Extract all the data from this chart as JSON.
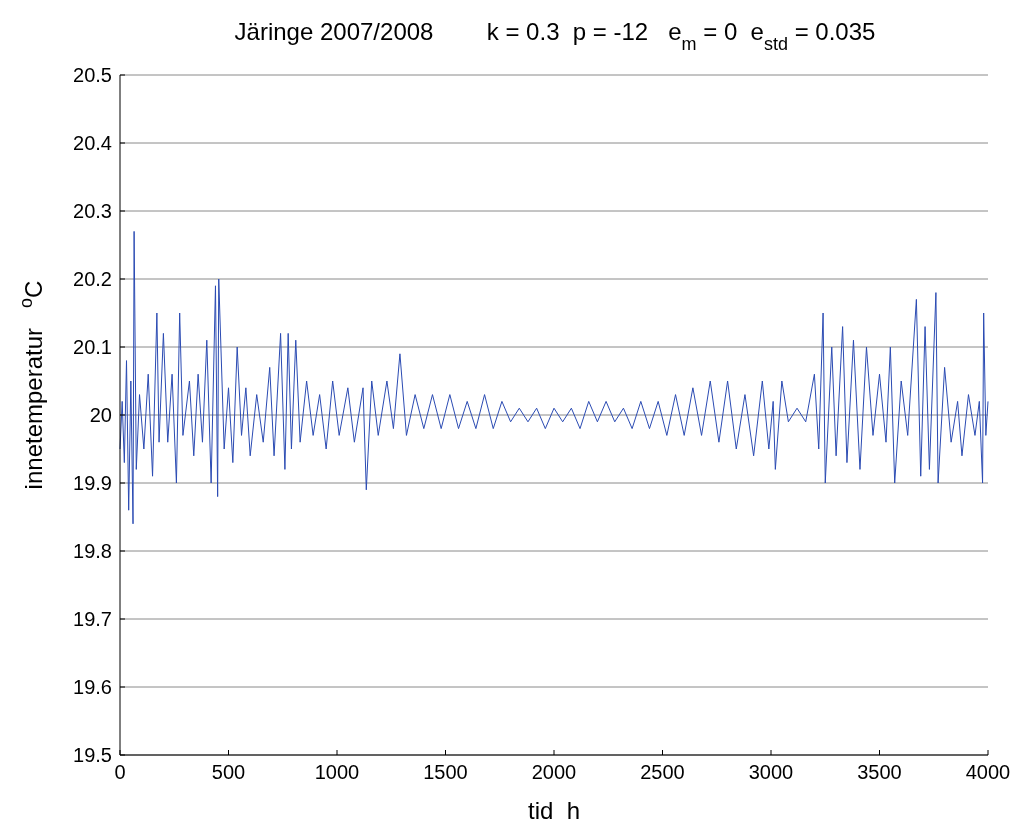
{
  "chart_data": {
    "type": "line",
    "title": "Järinge 2007/2008        k = 0.3  p = -12   e$_{m}$ = 0  e$_{std}$ = 0.035",
    "xlabel": "tid  h",
    "ylabel": "innetemperatur   $^{o}$C",
    "xlim": [
      0,
      4000
    ],
    "xticks": [
      0,
      500,
      1000,
      1500,
      2000,
      2500,
      3000,
      3500,
      4000
    ],
    "ylim": [
      19.5,
      20.5
    ],
    "yticks": [
      19.5,
      19.6,
      19.7,
      19.8,
      19.9,
      20,
      20.1,
      20.2,
      20.3,
      20.4,
      20.5
    ],
    "grid": "y",
    "marker": "none",
    "line_style": "solid",
    "series": [
      {
        "color": "#2b4bb3",
        "x": [
          0,
          10,
          20,
          30,
          40,
          50,
          60,
          65,
          75,
          90,
          110,
          130,
          150,
          170,
          180,
          200,
          220,
          240,
          260,
          275,
          290,
          320,
          340,
          360,
          380,
          400,
          420,
          440,
          450,
          455,
          480,
          500,
          520,
          540,
          560,
          580,
          600,
          630,
          660,
          690,
          710,
          740,
          760,
          775,
          790,
          810,
          830,
          860,
          890,
          920,
          950,
          980,
          1010,
          1050,
          1080,
          1120,
          1135,
          1160,
          1190,
          1230,
          1260,
          1290,
          1320,
          1360,
          1400,
          1440,
          1480,
          1520,
          1560,
          1600,
          1640,
          1680,
          1720,
          1760,
          1800,
          1840,
          1880,
          1920,
          1960,
          2000,
          2040,
          2080,
          2120,
          2160,
          2200,
          2240,
          2280,
          2320,
          2360,
          2400,
          2440,
          2480,
          2520,
          2560,
          2600,
          2640,
          2680,
          2720,
          2760,
          2800,
          2840,
          2880,
          2920,
          2960,
          2990,
          3010,
          3020,
          3050,
          3080,
          3120,
          3160,
          3200,
          3220,
          3240,
          3250,
          3280,
          3300,
          3330,
          3350,
          3380,
          3410,
          3440,
          3470,
          3500,
          3530,
          3550,
          3570,
          3600,
          3630,
          3670,
          3690,
          3710,
          3730,
          3760,
          3770,
          3800,
          3830,
          3860,
          3880,
          3910,
          3940,
          3960,
          3975,
          3980,
          3990,
          4000
        ],
        "values": [
          19.95,
          20.02,
          19.93,
          20.08,
          19.86,
          20.05,
          19.84,
          20.27,
          19.92,
          20.03,
          19.95,
          20.06,
          19.91,
          20.15,
          19.96,
          20.12,
          19.96,
          20.06,
          19.9,
          20.15,
          19.97,
          20.05,
          19.94,
          20.06,
          19.96,
          20.11,
          19.9,
          20.19,
          19.88,
          20.2,
          19.95,
          20.04,
          19.93,
          20.1,
          19.97,
          20.04,
          19.94,
          20.03,
          19.96,
          20.07,
          19.94,
          20.12,
          19.92,
          20.12,
          19.95,
          20.11,
          19.96,
          20.05,
          19.97,
          20.03,
          19.95,
          20.05,
          19.97,
          20.04,
          19.96,
          20.04,
          19.89,
          20.05,
          19.97,
          20.05,
          19.98,
          20.09,
          19.97,
          20.03,
          19.98,
          20.03,
          19.98,
          20.03,
          19.98,
          20.02,
          19.98,
          20.03,
          19.98,
          20.02,
          19.99,
          20.01,
          19.99,
          20.01,
          19.98,
          20.01,
          19.99,
          20.01,
          19.98,
          20.02,
          19.99,
          20.02,
          19.99,
          20.01,
          19.98,
          20.02,
          19.98,
          20.02,
          19.97,
          20.03,
          19.97,
          20.04,
          19.97,
          20.05,
          19.96,
          20.05,
          19.95,
          20.03,
          19.94,
          20.05,
          19.95,
          20.02,
          19.92,
          20.05,
          19.99,
          20.01,
          19.99,
          20.06,
          19.95,
          20.15,
          19.9,
          20.1,
          19.94,
          20.13,
          19.93,
          20.11,
          19.92,
          20.1,
          19.97,
          20.06,
          19.96,
          20.1,
          19.9,
          20.05,
          19.97,
          20.17,
          19.91,
          20.13,
          19.92,
          20.18,
          19.9,
          20.07,
          19.96,
          20.02,
          19.94,
          20.03,
          19.97,
          20.02,
          19.9,
          20.15,
          19.97,
          20.02
        ]
      }
    ]
  }
}
